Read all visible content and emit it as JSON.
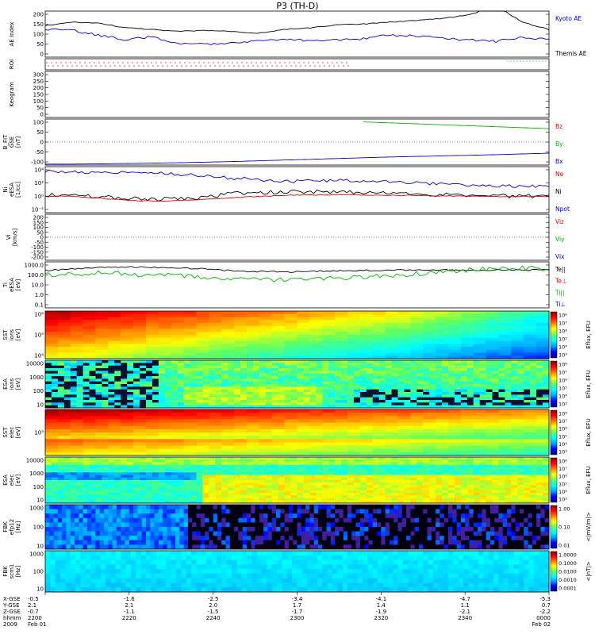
{
  "title": "P3 (TH-D)",
  "colors": {
    "kyoto": "#000000",
    "themis": "#0000cc",
    "red": "#d40000",
    "green": "#00b000",
    "blue": "#0000cc",
    "cyan": "#00c8c8",
    "roi_red": "#e02020"
  },
  "panels": [
    {
      "id": "ae",
      "ylabel": [
        "AE Index"
      ],
      "ticks": [
        "200",
        "150",
        "100",
        "50",
        "0"
      ],
      "legend": [
        {
          "text": "Kyoto AE",
          "color": "#0000cc"
        },
        {
          "text": "Themis AE",
          "color": "#000000"
        }
      ]
    },
    {
      "id": "roi",
      "ylabel": [
        "ROI"
      ],
      "ticks": [],
      "legend": []
    },
    {
      "id": "keogram",
      "ylabel": [
        "Keogram"
      ],
      "ticks": [
        "300",
        "250",
        "200",
        "150",
        "100",
        "50",
        "0"
      ],
      "legend": []
    },
    {
      "id": "bfield",
      "ylabel": [
        "B_FIT",
        "GSE",
        "[nT]"
      ],
      "ticks": [
        "100",
        "50",
        "0",
        "-50",
        "-100"
      ],
      "legend": [
        {
          "text": "Bz",
          "color": "#d40000"
        },
        {
          "text": "By",
          "color": "#00b000"
        },
        {
          "text": "Bx",
          "color": "#0000cc"
        }
      ]
    },
    {
      "id": "density",
      "ylabel": [
        "Ni",
        "eESA",
        "[1/cc]"
      ],
      "ticks": [
        "10⁴",
        "10²",
        "10⁰",
        "10⁻²"
      ],
      "legend": [
        {
          "text": "Ne",
          "color": "#d40000"
        },
        {
          "text": "Ni",
          "color": "#000000"
        },
        {
          "text": "Npot",
          "color": "#0000cc"
        }
      ]
    },
    {
      "id": "velocity",
      "ylabel": [
        "Vi",
        "[km/s]"
      ],
      "ticks": [
        "200",
        "150",
        "100",
        "50",
        "0",
        "-50",
        "-100",
        "-150",
        "-200"
      ],
      "legend": [
        {
          "text": "Viz",
          "color": "#d40000"
        },
        {
          "text": "Viy",
          "color": "#00b000"
        },
        {
          "text": "Vix",
          "color": "#0000cc"
        }
      ]
    },
    {
      "id": "temp",
      "ylabel": [
        "Ti",
        "eESA",
        "[eV]"
      ],
      "ticks": [
        "1000.0",
        "100.0",
        "10.0",
        "1.0",
        "0.1"
      ],
      "legend": [
        {
          "text": "Te||",
          "color": "#000000"
        },
        {
          "text": "Te⊥",
          "color": "#d40000"
        },
        {
          "text": "Ti||",
          "color": "#00b000"
        },
        {
          "text": "Ti⊥",
          "color": "#0000cc"
        }
      ]
    },
    {
      "id": "sst_i",
      "ylabel": [
        "SST",
        "ions",
        "[eV]"
      ],
      "ticks": [
        "10⁶",
        "10⁵",
        "10⁴"
      ],
      "cbar_label": "Eflux, EFU",
      "cbar_ticks": [
        "10⁸",
        "10⁷",
        "10⁶",
        "10⁵",
        "10⁴",
        "10³"
      ]
    },
    {
      "id": "esa_i",
      "ylabel": [
        "ESA",
        "ions",
        "[eV]"
      ],
      "ticks": [
        "10000",
        "1000",
        "100",
        "10"
      ],
      "cbar_label": "Eflux, EFU",
      "cbar_ticks": [
        "10⁸",
        "10⁷",
        "10⁶",
        "10⁵",
        "10⁴",
        "10³"
      ]
    },
    {
      "id": "sst_e",
      "ylabel": [
        "SST",
        "elec",
        "[eV]"
      ],
      "ticks": [
        "10⁵"
      ],
      "cbar_label": "Eflux, EFU",
      "cbar_ticks": [
        "10⁸",
        "10⁷",
        "10⁶",
        "10⁵",
        "10⁴",
        "10³"
      ]
    },
    {
      "id": "esa_e",
      "ylabel": [
        "ESA",
        "elec",
        "[eV]"
      ],
      "ticks": [
        "10000",
        "1000",
        "100",
        "10"
      ],
      "cbar_label": "Eflux, EFU",
      "cbar_ticks": [
        "10⁸",
        "10⁷",
        "10⁶",
        "10⁵",
        "10⁴",
        "10³"
      ]
    },
    {
      "id": "fbk_e",
      "ylabel": [
        "FBK",
        "efp12",
        "[Hz]"
      ],
      "ticks": [
        "1000",
        "100",
        "10"
      ],
      "cbar_label": "<|mV/m|>",
      "cbar_ticks": [
        "1.00",
        "0.10",
        "0.01"
      ]
    },
    {
      "id": "fbk_b",
      "ylabel": [
        "FBK",
        "scm1",
        "[Hz]"
      ],
      "ticks": [
        "1000",
        "100",
        "10"
      ],
      "cbar_label": "<|nT|>",
      "cbar_ticks": [
        "1.0000",
        "0.1000",
        "0.0100",
        "0.0010",
        "0.0001"
      ]
    }
  ],
  "footer": {
    "row_labels": [
      "X-GSE",
      "Y-GSE",
      "Z-GSE",
      "hhmm",
      "2009"
    ],
    "columns": [
      {
        "x": "-0.5",
        "y": "2.1",
        "z": "-0.7",
        "time": "2200",
        "date": "Feb 01"
      },
      {
        "x": "-1.6",
        "y": "2.1",
        "z": "-1.1",
        "time": "2220",
        "date": ""
      },
      {
        "x": "-2.5",
        "y": "2.0",
        "z": "-1.5",
        "time": "2240",
        "date": ""
      },
      {
        "x": "-3.4",
        "y": "1.7",
        "z": "-1.7",
        "time": "2300",
        "date": ""
      },
      {
        "x": "-4.1",
        "y": "1.4",
        "z": "-1.9",
        "time": "2320",
        "date": ""
      },
      {
        "x": "-4.7",
        "y": "1.1",
        "z": "-2.1",
        "time": "2340",
        "date": ""
      },
      {
        "x": "-5.3",
        "y": "0.7",
        "z": "-2.2",
        "time": "0000",
        "date": "Feb 02"
      }
    ]
  },
  "chart_data": {
    "type": "line",
    "title": "P3 (TH-D)",
    "time_axis": [
      "2200",
      "2220",
      "2240",
      "2300",
      "2320",
      "2340",
      "0000"
    ],
    "panels": [
      {
        "name": "AE Index",
        "ylim": [
          0,
          250
        ],
        "series": [
          {
            "name": "Kyoto AE",
            "values": [
              150,
              145,
              120,
              95,
              110,
              75,
              70,
              80,
              90,
              95,
              90,
              95,
              100,
              120,
              115,
              100,
              95,
              85,
              110,
              95
            ]
          },
          {
            "name": "Themis AE",
            "values": [
              170,
              190,
              185,
              160,
              150,
              140,
              145,
              140,
              130,
              150,
              160,
              175,
              180,
              190,
              200,
              210,
              230,
              280,
              190,
              150
            ]
          }
        ]
      },
      {
        "name": "B_FIT GSE",
        "ylim": [
          -120,
          120
        ],
        "series": [
          {
            "name": "Bz",
            "values": [
              null,
              null,
              null,
              null,
              null,
              null,
              null,
              null,
              null,
              null,
              null,
              null,
              105,
              100,
              95,
              90,
              85,
              80,
              75,
              70
            ]
          },
          {
            "name": "Bx",
            "values": [
              -115,
              -115,
              -114,
              -112,
              -110,
              -108,
              -105,
              -102,
              -98,
              -94,
              -90,
              -86,
              -82,
              -78,
              -75,
              -72,
              -69,
              -66,
              -62,
              -58
            ]
          }
        ]
      },
      {
        "name": "Ni eESA",
        "ylim": [
          -3,
          5
        ],
        "series": [
          {
            "name": "Npot",
            "values": [
              4.2,
              4.1,
              4.0,
              4.0,
              3.9,
              3.7,
              3.4,
              3.0,
              2.8,
              2.4,
              2.5,
              2.6,
              2.5,
              2.4,
              2.2,
              2.0,
              1.8,
              1.7,
              1.6,
              1.5
            ]
          },
          {
            "name": "Ni",
            "values": [
              0.1,
              0.0,
              -0.2,
              -0.5,
              -0.7,
              -0.6,
              -0.4,
              0.3,
              0.5,
              0.6,
              0.7,
              0.6,
              0.5,
              0.4,
              0.3,
              0.1,
              0.0,
              -0.1,
              -0.1,
              -0.2
            ]
          },
          {
            "name": "Ne",
            "values": [
              -0.1,
              -0.2,
              -0.5,
              -0.8,
              -1.0,
              -0.9,
              -0.7,
              -0.4,
              -0.2,
              0.0,
              0.1,
              0.1,
              0.1,
              0.0,
              0.0,
              -0.1,
              -0.1,
              -0.2,
              -0.2,
              -0.2
            ]
          }
        ]
      },
      {
        "name": "Ti eESA",
        "ylim": [
          0.1,
          2000
        ],
        "series": [
          {
            "name": "Te||",
            "values": [
              300,
              450,
              600,
              700,
              600,
              550,
              450,
              300,
              250,
              230,
              260,
              300,
              320,
              330,
              330,
              340,
              340,
              350,
              350,
              350
            ]
          },
          {
            "name": "Ti||",
            "values": [
              120,
              160,
              180,
              150,
              120,
              100,
              60,
              50,
              40,
              40,
              45,
              55,
              70,
              100,
              150,
              250,
              350,
              450,
              500,
              480
            ]
          }
        ]
      }
    ]
  }
}
